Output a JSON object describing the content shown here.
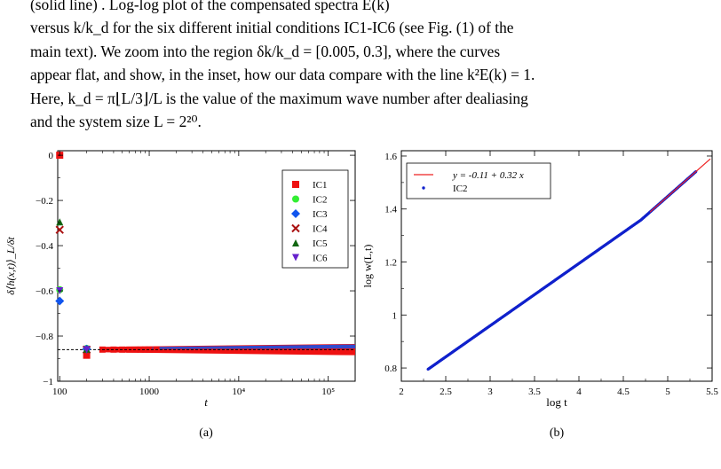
{
  "paragraph": {
    "line1": "versus k/k_d for the six different initial conditions IC1-IC6 (see Fig. (1) of the",
    "line2": "main text). We zoom into the region δk/k_d = [0.005, 0.3], where the curves",
    "line3": "appear flat, and show, in the inset, how our data compare with the line k²E(k) = 1.",
    "line4": "Here, k_d = π⌊L/3⌋/L is the value of the maximum wave number after dealiasing",
    "line5": "and the system size L = 2²⁰.",
    "top_fragment": "(solid line) . Log-log plot of the compensated spectra E(k)"
  },
  "panel_a": {
    "label": "(a)",
    "ylabel": "δ⟨h(x,t)⟩_L/δt",
    "xlabel": "t",
    "yticks": [
      "0",
      "−0.2",
      "−0.4",
      "−0.6",
      "−0.8",
      "−1"
    ],
    "xticks": [
      "100",
      "1000",
      "10⁴",
      "10⁵"
    ],
    "legend": [
      "IC1",
      "IC2",
      "IC3",
      "IC4",
      "IC5",
      "IC6"
    ]
  },
  "panel_b": {
    "label": "(b)",
    "ylabel": "log w(L,t)",
    "xlabel": "log t",
    "yticks": [
      "0.8",
      "1",
      "1.2",
      "1.4",
      "1.6"
    ],
    "xticks": [
      "2",
      "2.5",
      "3",
      "3.5",
      "4",
      "4.5",
      "5",
      "5.5"
    ],
    "legend_fit": "y = -0.11 + 0.32 x",
    "legend_data": "IC2"
  },
  "colors": {
    "ic1": "#ee1111",
    "ic2": "#33ee33",
    "ic3": "#1155ee",
    "ic4": "#aa1111",
    "ic5": "#116611",
    "ic6": "#6622cc",
    "fit": "#ee2222",
    "data": "#1122cc"
  },
  "chart_data": [
    {
      "type": "scatter",
      "xlabel": "t",
      "ylabel": "δ⟨h(x,t)⟩_L/δt",
      "xscale": "log",
      "xlim": [
        95,
        200000
      ],
      "ylim": [
        -1,
        0.02
      ],
      "reference_line": -0.86,
      "series": [
        {
          "name": "IC1",
          "marker": "square",
          "x": [
            100,
            200
          ],
          "y": [
            0.0,
            -0.885
          ]
        },
        {
          "name": "IC2",
          "marker": "circle",
          "x": [
            100,
            200
          ],
          "y": [
            -0.595,
            -0.855
          ]
        },
        {
          "name": "IC3",
          "marker": "diamond",
          "x": [
            100,
            200
          ],
          "y": [
            -0.645,
            -0.858
          ]
        },
        {
          "name": "IC4",
          "marker": "cross",
          "x": [
            100,
            200
          ],
          "y": [
            -0.33,
            -0.86
          ]
        },
        {
          "name": "IC5",
          "marker": "triangle-up",
          "x": [
            100,
            200
          ],
          "y": [
            -0.295,
            -0.858
          ]
        },
        {
          "name": "IC6",
          "marker": "triangle-down",
          "x": [
            100,
            200
          ],
          "y": [
            -0.6,
            -0.86
          ]
        }
      ],
      "band": {
        "x_start": 300,
        "x_end": 200000,
        "y_center": -0.86,
        "y_halfwidth_start": 0.012,
        "y_halfwidth_end": 0.025
      },
      "legend_position": "top-right"
    },
    {
      "type": "scatter",
      "xlabel": "log t",
      "ylabel": "log w(L,t)",
      "xlim": [
        2,
        5.5
      ],
      "ylim": [
        0.75,
        1.62
      ],
      "fit": {
        "intercept": -0.11,
        "slope": 0.32,
        "x_range": [
          4.8,
          5.5
        ]
      },
      "series": [
        {
          "name": "IC2",
          "x_start": 2.3,
          "x_end": 5.32,
          "y_start": 0.795,
          "y_end": 1.575,
          "curve": "logtime-sampled"
        }
      ],
      "legend_position": "top-left"
    }
  ]
}
